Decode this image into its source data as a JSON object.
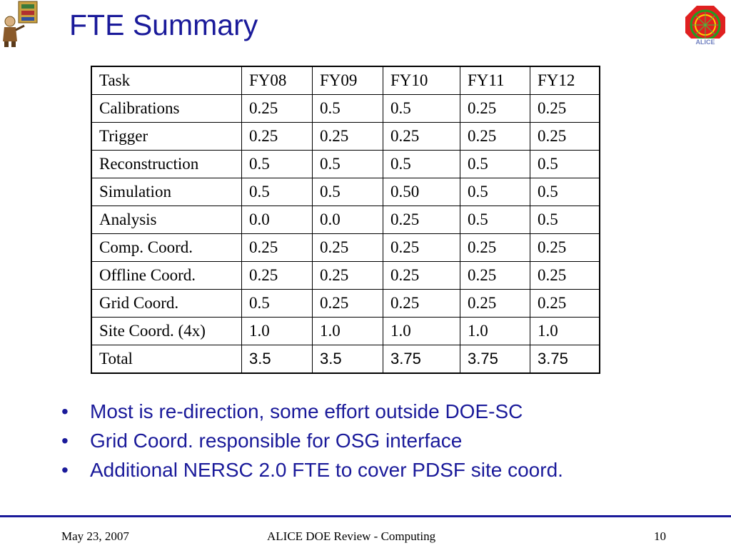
{
  "slide": {
    "title": "FTE Summary"
  },
  "table": {
    "headers": [
      "Task",
      "FY08",
      "FY09",
      "FY10",
      "FY11",
      "FY12"
    ],
    "rows": [
      [
        "Calibrations",
        "0.25",
        "0.5",
        "0.5",
        "0.25",
        "0.25"
      ],
      [
        "Trigger",
        "0.25",
        "0.25",
        "0.25",
        "0.25",
        "0.25"
      ],
      [
        "Reconstruction",
        "0.5",
        "0.5",
        "0.5",
        "0.5",
        "0.5"
      ],
      [
        "Simulation",
        "0.5",
        "0.5",
        "0.50",
        "0.5",
        "0.5"
      ],
      [
        "Analysis",
        "0.0",
        "0.0",
        "0.25",
        "0.5",
        "0.5"
      ],
      [
        "Comp. Coord.",
        "0.25",
        "0.25",
        "0.25",
        "0.25",
        "0.25"
      ],
      [
        "Offline Coord.",
        "0.25",
        "0.25",
        "0.25",
        "0.25",
        "0.25"
      ],
      [
        "Grid Coord.",
        "0.5",
        "0.25",
        "0.25",
        "0.25",
        "0.25"
      ],
      [
        "Site Coord. (4x)",
        "1.0",
        "1.0",
        "1.0",
        "1.0",
        "1.0"
      ],
      [
        "Total",
        "3.5",
        "3.5",
        "3.75",
        "3.75",
        "3.75"
      ]
    ]
  },
  "bullets": [
    "Most is re-direction, some effort outside DOE-SC",
    "Grid Coord. responsible for OSG interface",
    "Additional NERSC 2.0 FTE to cover PDSF site coord."
  ],
  "bullet_glyph": "•",
  "footer": {
    "date": "May 23, 2007",
    "center": "ALICE DOE Review - Computing",
    "page": "10"
  },
  "icons": {
    "left": "tools-figure-logo",
    "right": "alice-logo"
  },
  "colors": {
    "title": "#1a1a9a",
    "bullets": "#1a1a9a",
    "footer_rule": "#1a1a9a"
  }
}
